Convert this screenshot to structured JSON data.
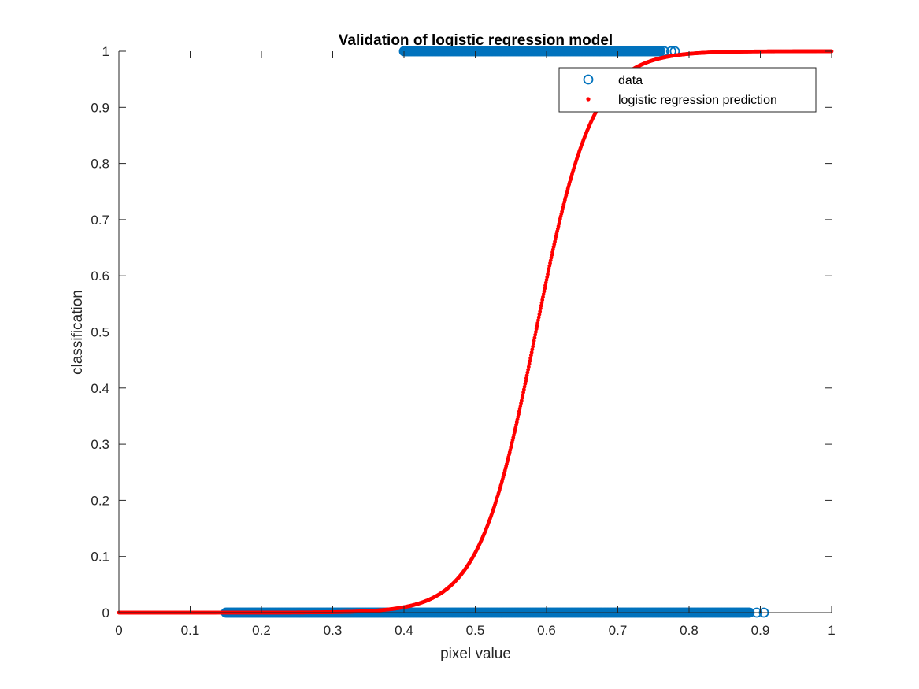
{
  "chart_data": {
    "type": "scatter",
    "title": "Validation of logistic regression model",
    "xlabel": "pixel value",
    "ylabel": "classification",
    "xlim": [
      0,
      1
    ],
    "ylim": [
      0,
      1
    ],
    "xticks": [
      0,
      0.1,
      0.2,
      0.3,
      0.4,
      0.5,
      0.6,
      0.7,
      0.8,
      0.9,
      1
    ],
    "xtick_labels": [
      "0",
      "0.1",
      "0.2",
      "0.3",
      "0.4",
      "0.5",
      "0.6",
      "0.7",
      "0.8",
      "0.9",
      "1"
    ],
    "yticks": [
      0,
      0.1,
      0.2,
      0.3,
      0.4,
      0.5,
      0.6,
      0.7,
      0.8,
      0.9,
      1
    ],
    "ytick_labels": [
      "0",
      "0.1",
      "0.2",
      "0.3",
      "0.4",
      "0.5",
      "0.6",
      "0.7",
      "0.8",
      "0.9",
      "1"
    ],
    "grid": false,
    "legend_position": "top-right",
    "series": [
      {
        "name": "data",
        "marker": "circle-open",
        "color": "#0072BD",
        "groups": [
          {
            "y": 0,
            "x_range": [
              0.15,
              0.885
            ],
            "extra_x": [
              0.895,
              0.905
            ]
          },
          {
            "y": 1,
            "x_range": [
              0.4,
              0.76
            ],
            "extra_x": [
              0.765,
              0.775,
              0.78
            ]
          }
        ]
      },
      {
        "name": "logistic regression prediction",
        "marker": "dot",
        "color": "#FF0000",
        "model": {
          "form": "logistic",
          "midpoint": 0.585,
          "steepness": 25
        },
        "x_range": [
          0,
          1
        ]
      }
    ]
  }
}
